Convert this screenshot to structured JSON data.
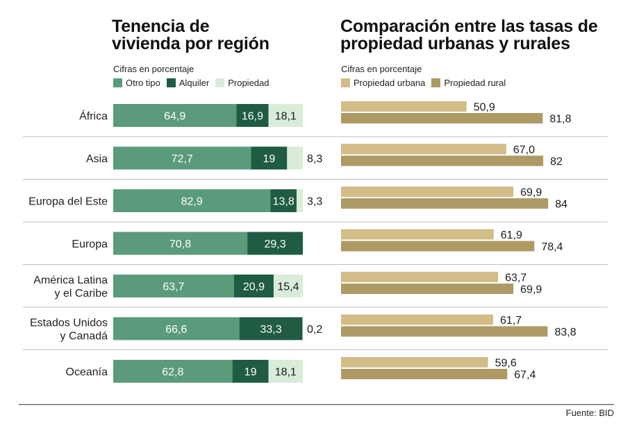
{
  "left_panel": {
    "title_line1": "Tenencia de",
    "title_line2": "vivienda por región",
    "subtitle": "Cifras en porcentaje",
    "legend": [
      "Otro tipo",
      "Alquiler",
      "Propiedad"
    ]
  },
  "right_panel": {
    "title_line1": "Comparación entre las tasas de",
    "title_line2": "propiedad urbanas y rurales",
    "subtitle": "Cifras en porcentaje",
    "legend": [
      "Propiedad urbana",
      "Propiedad rural"
    ]
  },
  "source": "Fuente: BID",
  "colors": {
    "otro_tipo": "#5a9b7b",
    "alquiler": "#1f5c43",
    "propiedad": "#d9ecd9",
    "propiedad_urbana": "#d2bc88",
    "propiedad_rural": "#ad9a64",
    "separator": "#bdbdbd",
    "baseline": "#555555"
  },
  "chart_data": [
    {
      "type": "bar",
      "stacked": true,
      "orientation": "horizontal",
      "title": "Tenencia de vivienda por región",
      "subtitle": "Cifras en porcentaje",
      "xlim": [
        0,
        100
      ],
      "categories": [
        [
          "África"
        ],
        [
          "Asia"
        ],
        [
          "Europa del Este"
        ],
        [
          "Europa"
        ],
        [
          "América Latina",
          "y el Caribe"
        ],
        [
          "Estados Unidos",
          "y Canadá"
        ],
        [
          "Oceanía"
        ]
      ],
      "series": [
        {
          "name": "Otro tipo",
          "values": [
            64.9,
            72.7,
            82.9,
            70.8,
            63.7,
            66.6,
            62.8
          ],
          "labels": [
            "64,9",
            "72,7",
            "82,9",
            "70,8",
            "63,7",
            "66,6",
            "62,8"
          ]
        },
        {
          "name": "Alquiler",
          "values": [
            16.9,
            19,
            13.8,
            29.3,
            20.9,
            33.3,
            19
          ],
          "labels": [
            "16,9",
            "19",
            "13,8",
            "29,3",
            "20,9",
            "33,3",
            "19"
          ]
        },
        {
          "name": "Propiedad",
          "values": [
            18.1,
            8.3,
            3.3,
            0,
            15.4,
            0.2,
            18.1
          ],
          "labels": [
            "18,1",
            "8,3",
            "3,3",
            "",
            "15,4",
            "0,2",
            "18,1"
          ]
        }
      ]
    },
    {
      "type": "bar",
      "orientation": "horizontal",
      "title": "Comparación entre las tasas de propiedad urbanas y rurales",
      "subtitle": "Cifras en porcentaje",
      "xlim": [
        0,
        100
      ],
      "categories": [
        [
          "África"
        ],
        [
          "Asia"
        ],
        [
          "Europa del Este"
        ],
        [
          "Europa"
        ],
        [
          "América Latina",
          "y el Caribe"
        ],
        [
          "Estados Unidos",
          "y Canadá"
        ],
        [
          "Oceanía"
        ]
      ],
      "series": [
        {
          "name": "Propiedad urbana",
          "values": [
            50.9,
            67.0,
            69.9,
            61.9,
            63.7,
            61.7,
            59.6
          ],
          "labels": [
            "50,9",
            "67,0",
            "69,9",
            "61,9",
            "63,7",
            "61,7",
            "59,6"
          ]
        },
        {
          "name": "Propiedad rural",
          "values": [
            81.8,
            82,
            84,
            78.4,
            69.9,
            83.8,
            67.4
          ],
          "labels": [
            "81,8",
            "82",
            "84",
            "78,4",
            "69,9",
            "83,8",
            "67,4"
          ]
        }
      ]
    }
  ]
}
